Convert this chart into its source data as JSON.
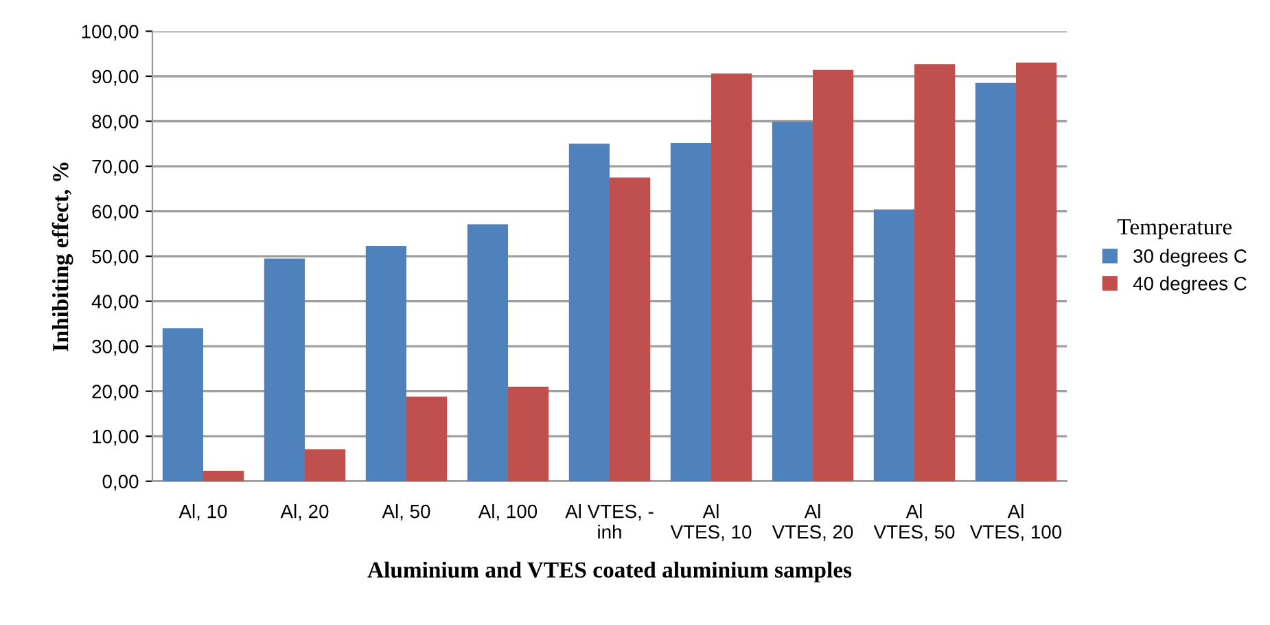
{
  "chart_data": {
    "type": "bar",
    "xlabel": "Aluminium and VTES coated aluminium samples",
    "ylabel": "Inhibiting effect, %",
    "legend_title": "Temperature",
    "categories": [
      "Al, 10",
      "Al, 20",
      "Al, 50",
      "Al, 100",
      "Al VTES, -\ninh",
      "Al\nVTES, 10",
      "Al\nVTES, 20",
      "Al\nVTES, 50",
      "Al\nVTES, 100"
    ],
    "series": [
      {
        "name": "30 degrees C",
        "color": "#4f81bd",
        "values": [
          34,
          49.5,
          52.3,
          57.1,
          75,
          75.2,
          79.9,
          60.4,
          88.5
        ]
      },
      {
        "name": "40 degrees C",
        "color": "#c0504d",
        "values": [
          2.3,
          7.1,
          18.8,
          21,
          67.5,
          90.6,
          91.4,
          92.7,
          93
        ]
      }
    ],
    "ylim": [
      0,
      100
    ],
    "yticks": [
      {
        "value": 0,
        "label": "0,00"
      },
      {
        "value": 10,
        "label": "10,00"
      },
      {
        "value": 20,
        "label": "20,00"
      },
      {
        "value": 30,
        "label": "30,00"
      },
      {
        "value": 40,
        "label": "40,00"
      },
      {
        "value": 50,
        "label": "50,00"
      },
      {
        "value": 60,
        "label": "60,00"
      },
      {
        "value": 70,
        "label": "70,00"
      },
      {
        "value": 80,
        "label": "80,00"
      },
      {
        "value": 90,
        "label": "90,00"
      },
      {
        "value": 100,
        "label": "100,00"
      }
    ],
    "grid": "y",
    "legend": "right"
  }
}
